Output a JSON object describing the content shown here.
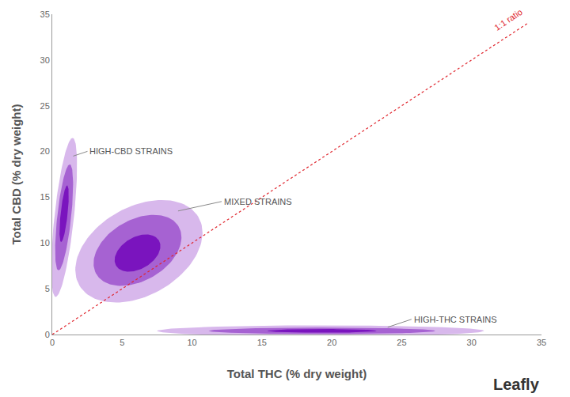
{
  "chart_data": {
    "type": "density_ellipses",
    "xlabel": "Total THC (% dry weight)",
    "ylabel": "Total CBD (% dry weight)",
    "xlim": [
      0,
      35
    ],
    "ylim": [
      0,
      35
    ],
    "xticks": [
      0,
      5,
      10,
      15,
      20,
      25,
      30,
      35
    ],
    "yticks": [
      0,
      5,
      10,
      15,
      20,
      25,
      30,
      35
    ],
    "grid": false,
    "groups": [
      {
        "name": "HIGH-CBD STRAINS",
        "label_point": [
          1.5,
          19.5
        ],
        "ellipses": [
          {
            "center": [
              0.85,
              12.8
            ],
            "semi_axes": [
              8.7,
              0.7
            ],
            "angle": 86,
            "color": "#d8b8ec"
          },
          {
            "center": [
              0.85,
              12.8
            ],
            "semi_axes": [
              5.8,
              0.5
            ],
            "angle": 86,
            "color": "#a662d2"
          },
          {
            "center": [
              0.85,
              13.2
            ],
            "semi_axes": [
              3.1,
              0.25
            ],
            "angle": 86,
            "color": "#7a14be"
          }
        ]
      },
      {
        "name": "MIXED STRAINS",
        "label_point": [
          9.0,
          13.5
        ],
        "ellipses": [
          {
            "center": [
              6.2,
              9.1
            ],
            "semi_axes": [
              6.06,
              3.92
            ],
            "angle": 60,
            "color": "#d8b8ec"
          },
          {
            "center": [
              6.1,
              9.2
            ],
            "semi_axes": [
              4.2,
              2.7
            ],
            "angle": 60,
            "color": "#a662d2"
          },
          {
            "center": [
              6.1,
              8.9
            ],
            "semi_axes": [
              2.2,
              1.4
            ],
            "angle": 60,
            "color": "#7a14be"
          }
        ]
      },
      {
        "name": "HIGH-THC STRAINS",
        "label_point": [
          24.0,
          0.8
        ],
        "ellipses": [
          {
            "center": [
              19.2,
              0.4
            ],
            "semi_axes": [
              11.7,
              0.6
            ],
            "angle": 0,
            "color": "#d8b8ec"
          },
          {
            "center": [
              19.3,
              0.4
            ],
            "semi_axes": [
              8.1,
              0.35
            ],
            "angle": 0,
            "color": "#a662d2"
          },
          {
            "center": [
              19.3,
              0.4
            ],
            "semi_axes": [
              3.9,
              0.2
            ],
            "angle": 0,
            "color": "#7a14be"
          }
        ]
      }
    ],
    "reference_line": {
      "label": "1:1 ratio",
      "x": [
        0,
        34
      ],
      "y": [
        0,
        34
      ],
      "color": "#e0262e",
      "line_style": "dot"
    },
    "source": "Leafly"
  }
}
